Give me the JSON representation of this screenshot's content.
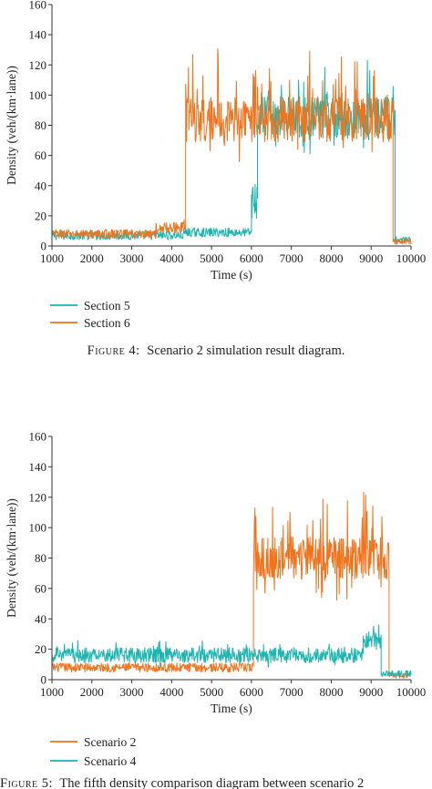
{
  "figures": [
    {
      "caption_label": "Figure 4:",
      "caption_text": "Scenario 2 simulation result diagram.",
      "legend": [
        {
          "name": "Section 5",
          "color": "#1bb5b0"
        },
        {
          "name": "Section 6",
          "color": "#f0731e"
        }
      ]
    },
    {
      "caption_label": "Figure 5:",
      "caption_text": "The fifth density comparison diagram between scenario 2",
      "legend": [
        {
          "name": "Scenario 2",
          "color": "#f0731e"
        },
        {
          "name": "Scenario 4",
          "color": "#1bb5b0"
        }
      ]
    }
  ],
  "chart_data": [
    {
      "type": "line",
      "xlabel": "Time (s)",
      "ylabel": "Density (veh/(km·lane))",
      "xlim": [
        1000,
        10000
      ],
      "ylim": [
        0,
        160
      ],
      "xticks": [
        1000,
        2000,
        3000,
        4000,
        5000,
        6000,
        7000,
        8000,
        9000,
        10000
      ],
      "yticks": [
        0,
        20,
        40,
        60,
        80,
        100,
        120,
        140,
        160
      ],
      "grid": false,
      "legend_position": "bottom-left",
      "series": [
        {
          "name": "Section 5",
          "color": "#1bb5b0",
          "segments": [
            {
              "x0": 1000,
              "x1": 4300,
              "base": 7,
              "noise": 3,
              "spike": 0
            },
            {
              "x0": 4300,
              "x1": 6000,
              "base": 9,
              "noise": 3,
              "spike": 0
            },
            {
              "x0": 6000,
              "x1": 6150,
              "base": 30,
              "noise": 12,
              "spike": 0
            },
            {
              "x0": 6150,
              "x1": 9600,
              "base": 85,
              "noise": 14,
              "spike": 30
            },
            {
              "x0": 9600,
              "x1": 10000,
              "base": 4,
              "noise": 2,
              "spike": 0
            }
          ]
        },
        {
          "name": "Section 6",
          "color": "#f0731e",
          "segments": [
            {
              "x0": 1000,
              "x1": 3600,
              "base": 8,
              "noise": 3,
              "spike": 0
            },
            {
              "x0": 3600,
              "x1": 4350,
              "base": 12,
              "noise": 4,
              "spike": 5
            },
            {
              "x0": 4350,
              "x1": 9550,
              "base": 84,
              "noise": 15,
              "spike": 40
            },
            {
              "x0": 9550,
              "x1": 10000,
              "base": 3,
              "noise": 2,
              "spike": 0
            }
          ]
        }
      ]
    },
    {
      "type": "line",
      "xlabel": "Time (s)",
      "ylabel": "Density (veh/(km·lane))",
      "xlim": [
        1000,
        10000
      ],
      "ylim": [
        0,
        160
      ],
      "xticks": [
        1000,
        2000,
        3000,
        4000,
        5000,
        6000,
        7000,
        8000,
        9000,
        10000
      ],
      "yticks": [
        0,
        20,
        40,
        60,
        80,
        100,
        120,
        140,
        160
      ],
      "grid": false,
      "legend_position": "bottom-left",
      "series": [
        {
          "name": "Scenario 2",
          "color": "#f0731e",
          "segments": [
            {
              "x0": 1000,
              "x1": 6050,
              "base": 8,
              "noise": 3,
              "spike": 0
            },
            {
              "x0": 6050,
              "x1": 9450,
              "base": 80,
              "noise": 14,
              "spike": 40
            },
            {
              "x0": 9450,
              "x1": 10000,
              "base": 3,
              "noise": 2,
              "spike": 0
            }
          ]
        },
        {
          "name": "Scenario 4",
          "color": "#1bb5b0",
          "segments": [
            {
              "x0": 1000,
              "x1": 8800,
              "base": 16,
              "noise": 5,
              "spike": 6
            },
            {
              "x0": 8800,
              "x1": 9250,
              "base": 25,
              "noise": 6,
              "spike": 8
            },
            {
              "x0": 9250,
              "x1": 10000,
              "base": 4,
              "noise": 2,
              "spike": 0
            }
          ]
        }
      ]
    }
  ]
}
